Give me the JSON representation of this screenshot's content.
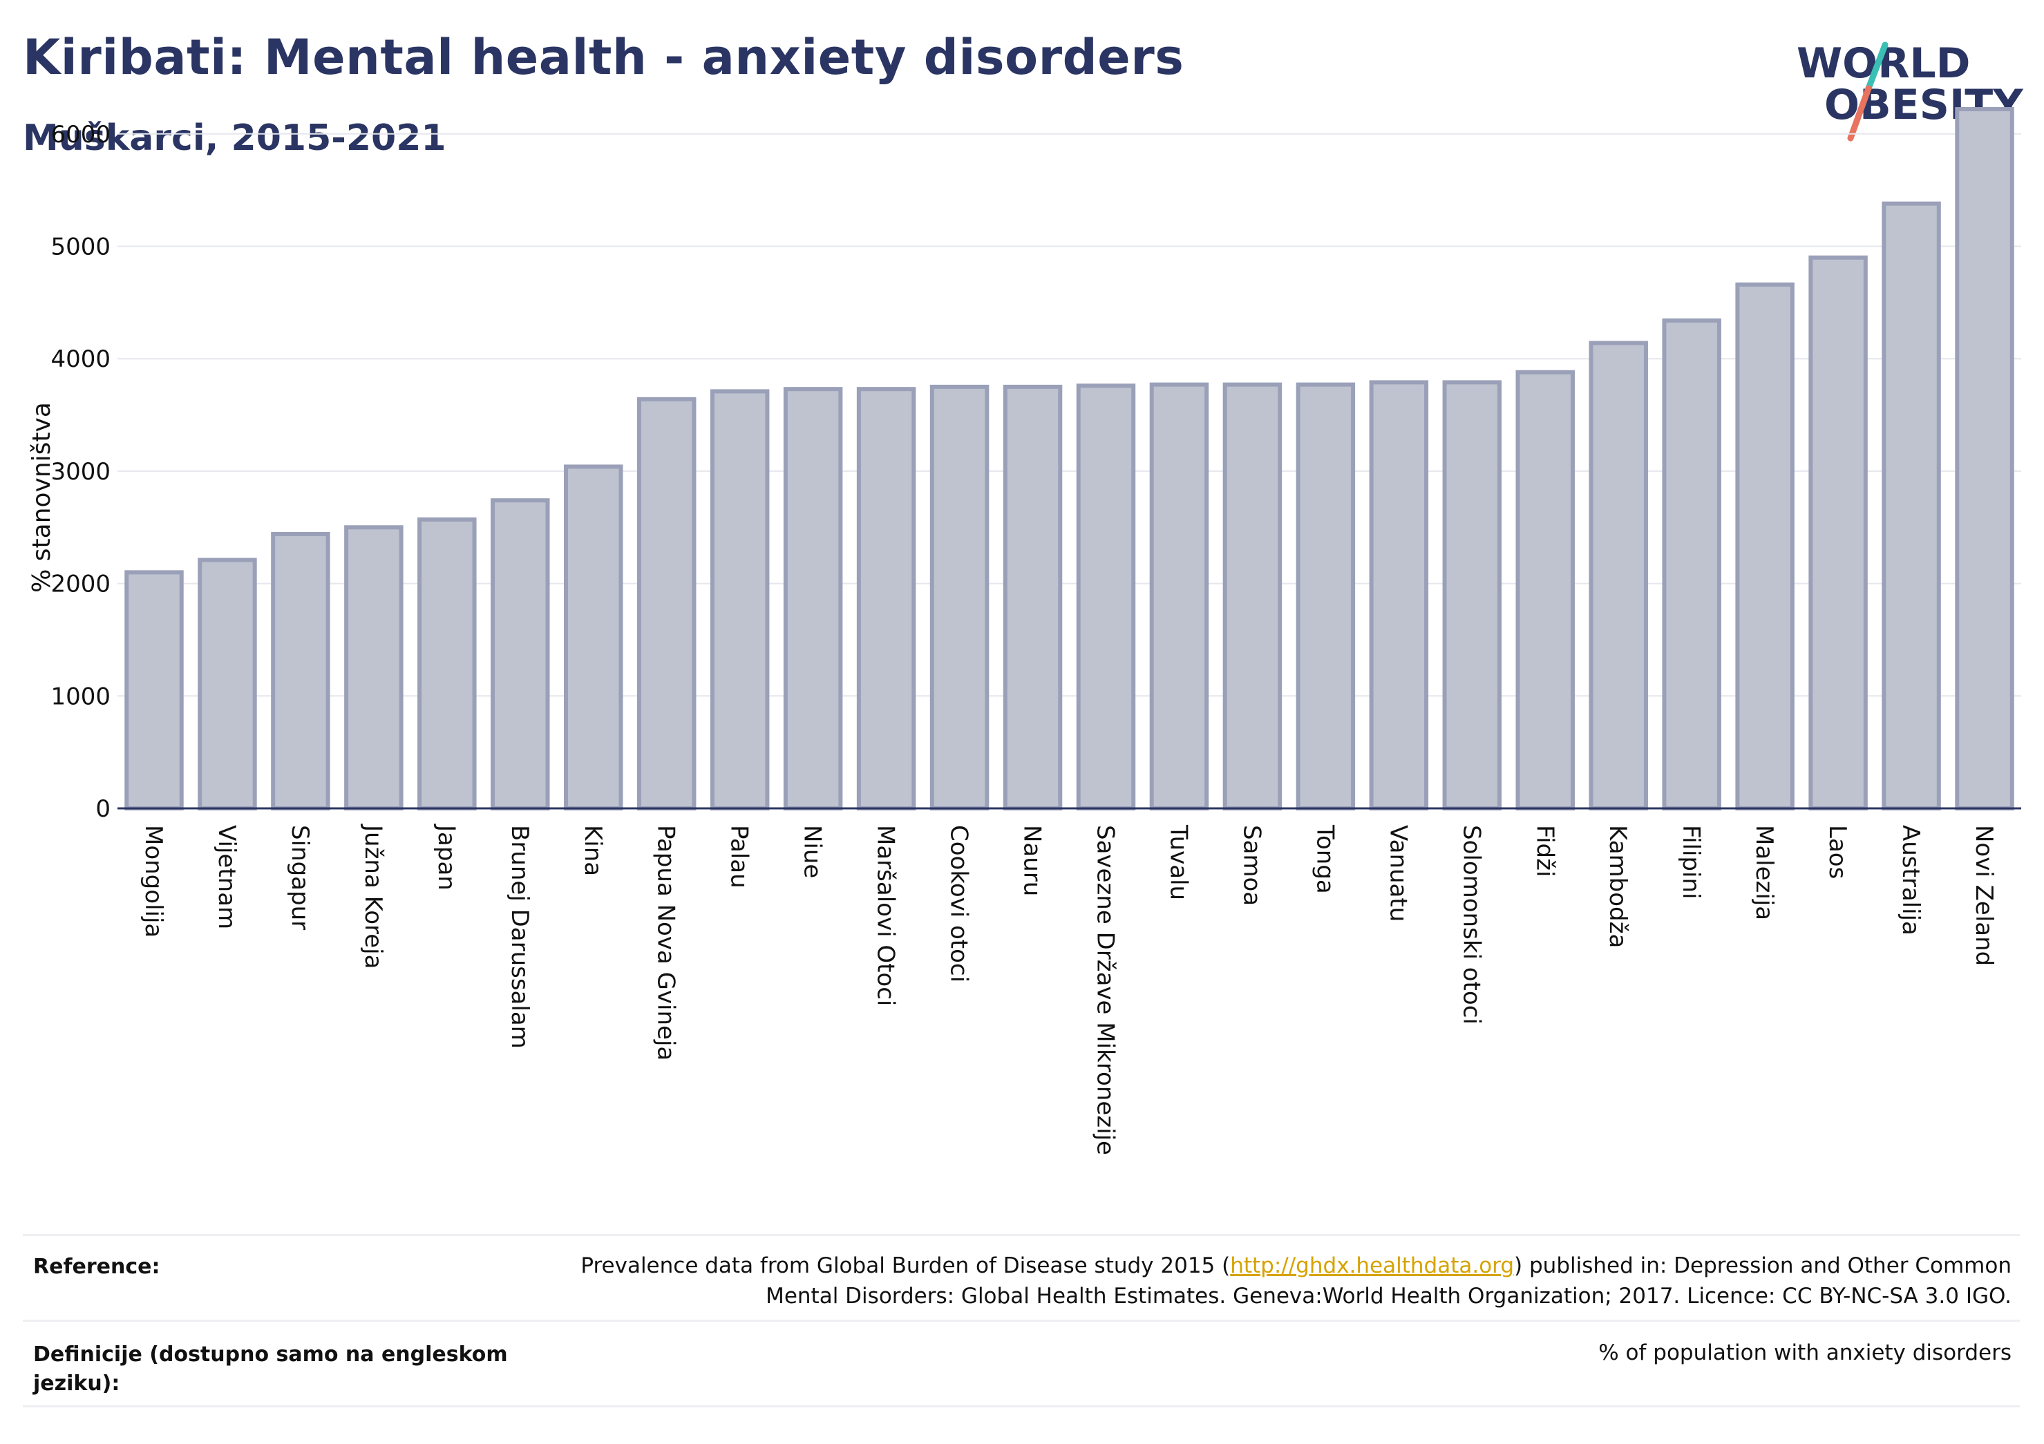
{
  "header": {
    "title": "Kiribati: Mental health - anxiety disorders",
    "subtitle": "Muškarci, 2015-2021",
    "logo_line1": "WORLD",
    "logo_line2": "OBESITY"
  },
  "colors": {
    "title": "#2b3563",
    "bar_fill": "#bfc3d0",
    "bar_stroke": "#9aa0b8",
    "axis": "#2b3563",
    "grid": "#e6e7ee",
    "logo_slash_teal": "#3bbfb5",
    "logo_slash_red": "#e8735f"
  },
  "chart_data": {
    "type": "bar",
    "ylabel": "% stanovništva",
    "ylim": [
      0,
      6300
    ],
    "yticks": [
      0,
      1000,
      2000,
      3000,
      4000,
      5000,
      6000
    ],
    "grid": true,
    "categories": [
      "Mongolija",
      "Vijetnam",
      "Singapur",
      "Južna Koreja",
      "Japan",
      "Brunej Darussalam",
      "Kina",
      "Papua Nova Gvineja",
      "Palau",
      "Niue",
      "Maršalovi Otoci",
      "Cookovi otoci",
      "Nauru",
      "Savezne Države Mikronezije",
      "Tuvalu",
      "Samoa",
      "Tonga",
      "Vanuatu",
      "Solomonski otoci",
      "Fidži",
      "Kambodža",
      "Filipini",
      "Malezija",
      "Laos",
      "Australija",
      "Novi Zeland"
    ],
    "values": [
      2100,
      2210,
      2440,
      2500,
      2570,
      2740,
      3040,
      3640,
      3710,
      3730,
      3730,
      3750,
      3750,
      3760,
      3770,
      3770,
      3770,
      3790,
      3790,
      3880,
      4140,
      4340,
      4660,
      4900,
      5380,
      6220
    ]
  },
  "footer": {
    "reference_label": "Reference:",
    "reference_text_before": "Prevalence data from Global Burden of Disease study 2015 (",
    "reference_link": "http://ghdx.healthdata.org",
    "reference_text_after": ") published in: Depression and Other Common",
    "reference_text_line2": "Mental Disorders: Global Health Estimates. Geneva:World Health Organization; 2017. Licence: CC BY-NC-SA 3.0 IGO.",
    "definition_label": "Definicije (dostupno samo na engleskom jeziku):",
    "definition_text": "% of population with anxiety disorders"
  }
}
